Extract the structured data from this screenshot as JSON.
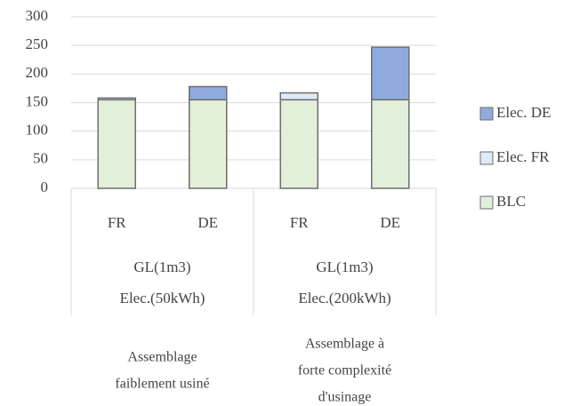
{
  "chart_data": {
    "type": "stacked_bar",
    "categories": [
      "FR",
      "DE",
      "FR",
      "DE"
    ],
    "groups": [
      [
        "GL(1m3)",
        "Elec.(50kWh)"
      ],
      [
        "GL(1m3)",
        "Elec.(200kWh)"
      ]
    ],
    "outer_groups": [
      [
        "Assemblage",
        "faiblement usiné"
      ],
      [
        "Assemblage à",
        "forte complexité",
        "d'usinage"
      ]
    ],
    "series": [
      {
        "name": "BLC",
        "color": "#e2efda",
        "values": [
          155,
          155,
          155,
          155
        ]
      },
      {
        "name": "Elec. FR",
        "color": "#ddebf7",
        "values": [
          3,
          0,
          12,
          0
        ]
      },
      {
        "name": "Elec. DE",
        "color": "#8faadc",
        "values": [
          0,
          23,
          0,
          92
        ]
      }
    ],
    "ylim": [
      0,
      300
    ],
    "yticks": [
      0,
      50,
      100,
      150,
      200,
      250,
      300
    ],
    "grid": true,
    "legend": "right"
  }
}
